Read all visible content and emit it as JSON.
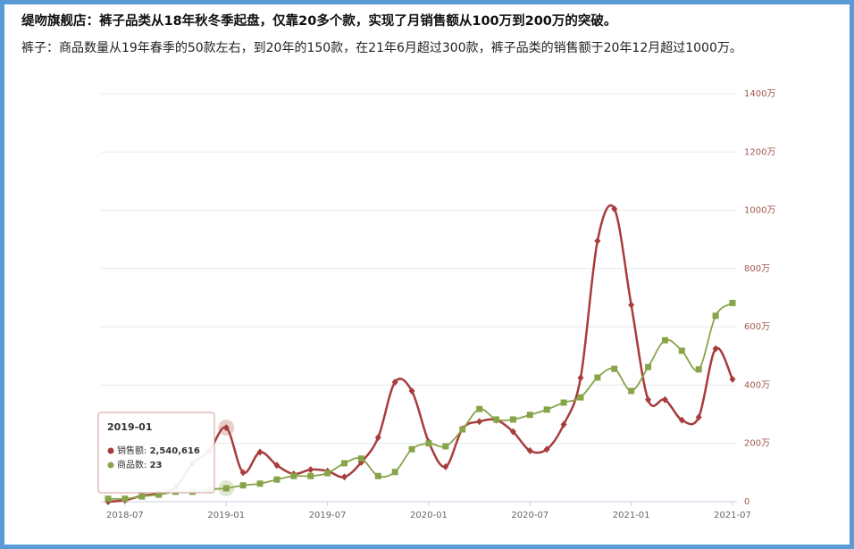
{
  "chart_data": {
    "type": "line",
    "title": "缇吻旗舰店：裤子品类从18年秋冬季起盘，仅靠20多个款，实现了月销售额从100万到200万的突破。",
    "subtitle": "裤子：商品数量从19年春季的50款左右，到20年的150款，在21年6月超过300款，裤子品类的销售额于20年12月超过1000万。",
    "categories": [
      null,
      "2018-07",
      null,
      null,
      null,
      null,
      null,
      "2019-01",
      null,
      null,
      null,
      null,
      null,
      "2019-07",
      null,
      null,
      null,
      null,
      null,
      "2020-01",
      null,
      null,
      null,
      null,
      null,
      "2020-07",
      null,
      null,
      null,
      null,
      null,
      "2021-01",
      null,
      null,
      null,
      null,
      null,
      "2021-07"
    ],
    "series": [
      {
        "name": "销售额",
        "color": "#a83c3c",
        "values": [
          0,
          5,
          20,
          28,
          50,
          130,
          175,
          254.0616,
          100,
          170,
          125,
          95,
          110,
          105,
          85,
          135,
          220,
          410,
          380,
          205,
          120,
          250,
          275,
          280,
          240,
          175,
          180,
          265,
          425,
          895,
          1005,
          675,
          350,
          350,
          280,
          290,
          525,
          420
        ]
      },
      {
        "name": "商品数",
        "color": "#88a44a",
        "axis": "y2",
        "values": [
          5,
          5,
          9,
          12,
          17,
          17,
          21,
          23,
          28,
          31,
          38,
          44,
          44,
          49,
          66,
          74,
          44,
          51,
          90,
          100,
          95,
          124,
          159,
          141,
          141,
          149,
          158,
          170,
          179,
          213,
          228,
          190,
          231,
          277,
          259,
          227,
          319,
          341
        ]
      }
    ],
    "ylim": [
      0,
      1400
    ],
    "yticks": [
      0,
      {
        "value": 200,
        "label": "200万"
      },
      {
        "value": 400,
        "label": "400万"
      },
      {
        "value": 600,
        "label": "600万"
      },
      {
        "value": 800,
        "label": "800万"
      },
      {
        "value": 1000,
        "label": "1000万"
      },
      {
        "value": 1200,
        "label": "1200万"
      },
      {
        "value": 1400,
        "label": "1400万"
      }
    ],
    "y2lim": [
      0,
      700
    ],
    "grid": true,
    "tooltip": {
      "title": "2019-01",
      "value_label": "2,540,616"
    }
  }
}
